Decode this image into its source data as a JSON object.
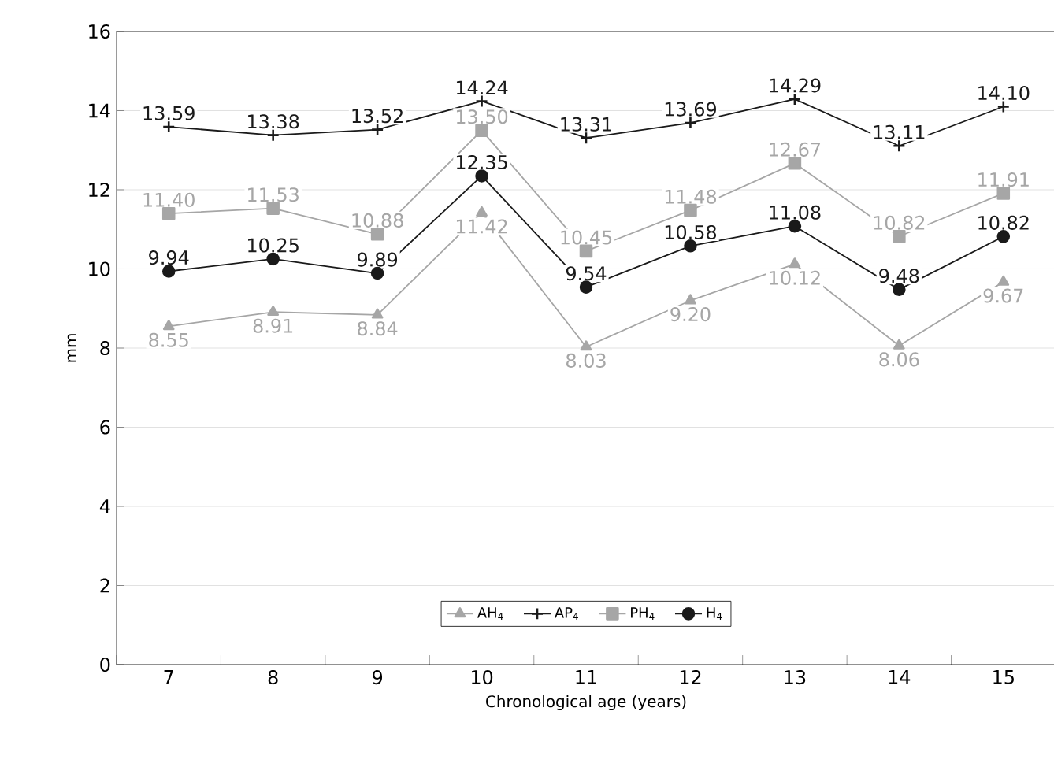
{
  "chart_data": {
    "type": "line",
    "xlabel": "Chronological age (years)",
    "ylabel": "mm",
    "categories": [
      "7",
      "8",
      "9",
      "10",
      "11",
      "12",
      "13",
      "14",
      "15"
    ],
    "ylim": [
      0,
      16
    ],
    "yticks": [
      0,
      2,
      4,
      6,
      8,
      10,
      12,
      14,
      16
    ],
    "grid": "y",
    "legend": "bottom",
    "series": [
      {
        "name": "AH$_{4}$",
        "color": "#a6a6a6",
        "marker": "triangle",
        "values": [
          8.55,
          8.91,
          8.84,
          11.42,
          8.03,
          9.2,
          10.12,
          8.06,
          9.67
        ],
        "value_labels": [
          "8.55",
          "8.91",
          "8.84",
          "11.42",
          "8.03",
          "9.20",
          "10.12",
          "8.06",
          "9.67"
        ]
      },
      {
        "name": "AP$_{4}$",
        "color": "#1a1a1a",
        "marker": "cross",
        "values": [
          13.59,
          13.38,
          13.52,
          14.24,
          13.31,
          13.69,
          14.29,
          13.11,
          14.1
        ],
        "value_labels": [
          "13.59",
          "13.38",
          "13.52",
          "14.24",
          "13.31",
          "13.69",
          "14.29",
          "13.11",
          "14.10"
        ]
      },
      {
        "name": "PH$_{4}$",
        "color": "#a6a6a6",
        "marker": "square",
        "values": [
          11.4,
          11.53,
          10.88,
          13.5,
          10.45,
          11.48,
          12.67,
          10.82,
          11.91
        ],
        "value_labels": [
          "11.40",
          "11.53",
          "10.88",
          "13.50",
          "10.45",
          "11.48",
          "12.67",
          "10.82",
          "11.91"
        ]
      },
      {
        "name": "H$_{4}$",
        "color": "#1a1a1a",
        "marker": "circle",
        "values": [
          9.94,
          10.25,
          9.89,
          12.35,
          9.54,
          10.58,
          11.08,
          9.48,
          10.82
        ],
        "value_labels": [
          "9.94",
          "10.25",
          "9.89",
          "12.35",
          "9.54",
          "10.58",
          "11.08",
          "9.48",
          "10.82"
        ]
      }
    ]
  }
}
